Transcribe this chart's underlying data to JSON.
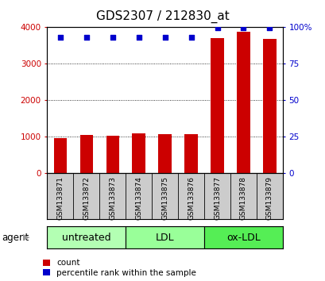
{
  "title": "GDS2307 / 212830_at",
  "samples": [
    "GSM133871",
    "GSM133872",
    "GSM133873",
    "GSM133874",
    "GSM133875",
    "GSM133876",
    "GSM133877",
    "GSM133878",
    "GSM133879"
  ],
  "counts": [
    950,
    1040,
    1010,
    1080,
    1060,
    1060,
    3680,
    3870,
    3660
  ],
  "percentiles": [
    93,
    93,
    93,
    93,
    93,
    93,
    99,
    99,
    99
  ],
  "groups": [
    {
      "label": "untreated",
      "start": 0,
      "end": 3,
      "color": "#b3ffb3"
    },
    {
      "label": "LDL",
      "start": 3,
      "end": 6,
      "color": "#99ff99"
    },
    {
      "label": "ox-LDL",
      "start": 6,
      "end": 9,
      "color": "#55ee55"
    }
  ],
  "bar_color": "#cc0000",
  "dot_color": "#0000cc",
  "left_yticks": [
    0,
    1000,
    2000,
    3000,
    4000
  ],
  "right_yticks": [
    0,
    25,
    50,
    75,
    100
  ],
  "ylim_left": [
    0,
    4000
  ],
  "ylim_right": [
    0,
    100
  ],
  "bar_width": 0.5,
  "background_color": "#ffffff",
  "label_bg_color": "#cccccc",
  "grid_color": "#000000",
  "agent_label": "agent",
  "legend_count_label": "count",
  "legend_percentile_label": "percentile rank within the sample",
  "title_fontsize": 11,
  "tick_fontsize": 7.5,
  "sample_fontsize": 6.5,
  "group_fontsize": 9,
  "legend_fontsize": 7.5,
  "agent_fontsize": 8.5
}
